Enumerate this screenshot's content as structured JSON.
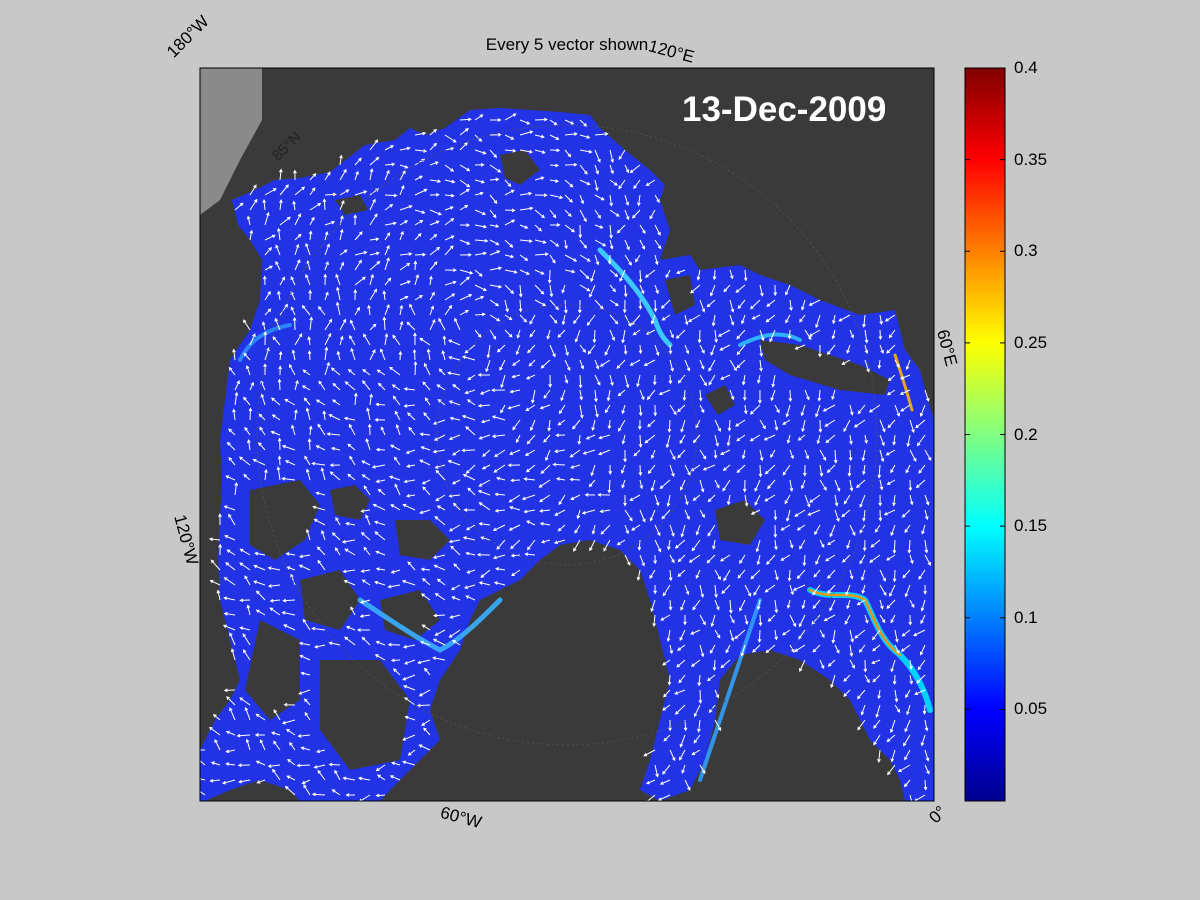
{
  "figure": {
    "title": "Every 5 vector shown",
    "date": "13-Dec-2009"
  },
  "graticule": {
    "longitude_labels": [
      "180°W",
      "120°E",
      "60°E",
      "0°",
      "60°W",
      "120°W"
    ],
    "latitude_labels": [
      "85°N"
    ]
  },
  "colorbar": {
    "min": 0,
    "max": 0.4,
    "ticks": [
      "0.4",
      "0.35",
      "0.3",
      "0.25",
      "0.2",
      "0.15",
      "0.1",
      "0.05"
    ],
    "tick_values": [
      0.4,
      0.35,
      0.3,
      0.25,
      0.2,
      0.15,
      0.1,
      0.05
    ],
    "colormap": [
      "#00008f",
      "#0000ff",
      "#0080ff",
      "#00ffff",
      "#80ff80",
      "#ffff00",
      "#ff8000",
      "#ff0000",
      "#800000"
    ]
  },
  "colors": {
    "background": "#c8c8c8",
    "land": "#3a3a3a",
    "land_edge": "#8a8a8a",
    "ice_base": "#2233e6",
    "vector": "#ffffff"
  }
}
